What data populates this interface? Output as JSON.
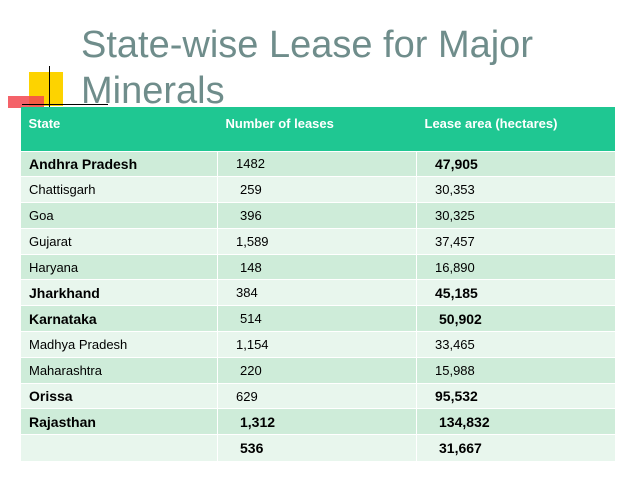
{
  "title": "State-wise Lease for Major Minerals",
  "table": {
    "headers": [
      "State",
      "Number of leases",
      "Lease area (hectares)"
    ],
    "rows": [
      {
        "state": "Andhra Pradesh",
        "leases": "1482",
        "area": "47,905"
      },
      {
        "state": "Chattisgarh",
        "leases": "259",
        "area": "30,353"
      },
      {
        "state": "Goa",
        "leases": "396",
        "area": "30,325"
      },
      {
        "state": "Gujarat",
        "leases": "1,589",
        "area": "37,457"
      },
      {
        "state": "Haryana",
        "leases": "148",
        "area": "16,890"
      },
      {
        "state": "Jharkhand",
        "leases": "384",
        "area": "45,185"
      },
      {
        "state": "Karnataka",
        "leases": "514",
        "area": "50,902"
      },
      {
        "state": "Madhya Pradesh",
        "leases": "1,154",
        "area": "33,465"
      },
      {
        "state": "Maharashtra",
        "leases": "220",
        "area": "15,988"
      },
      {
        "state": "Orissa",
        "leases": "629",
        "area": "95,532"
      },
      {
        "state": "Rajasthan",
        "leases": "1,312",
        "area": "134,832"
      },
      {
        "state": "",
        "leases": "536",
        "area": "31,667"
      }
    ]
  },
  "colors": {
    "header_bg": "#1fc792",
    "row_dark": "#ceecd9",
    "row_light": "#e8f6ed",
    "title": "#6f8d8b"
  }
}
